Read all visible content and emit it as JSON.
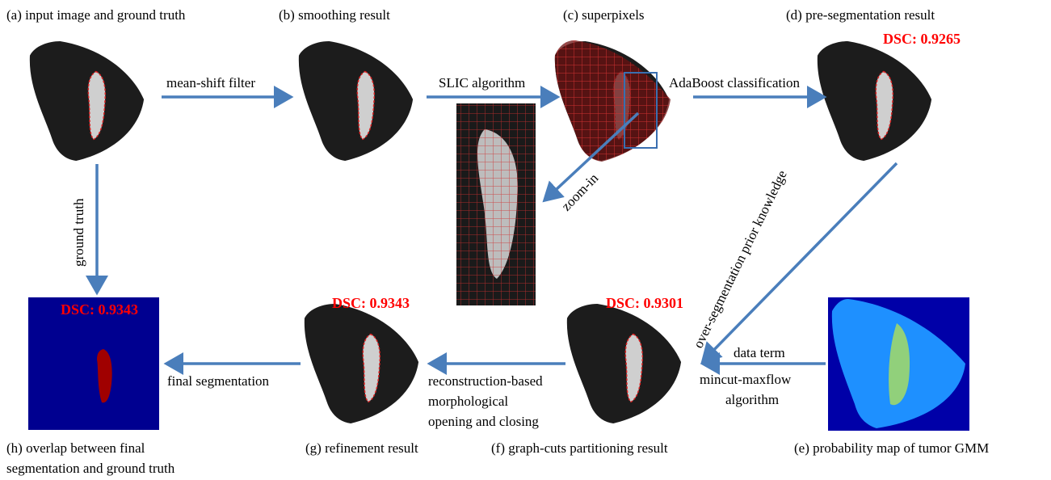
{
  "nodes": [
    {
      "caption": "(a) input image and ground truth"
    },
    {
      "caption": "(b) smoothing result"
    },
    {
      "caption": "(c) superpixels"
    },
    {
      "caption": "(d) pre-segmentation result",
      "score": "DSC: 0.9265"
    },
    {
      "caption": "(e) probability map of tumor GMM"
    },
    {
      "caption": "(f) graph-cuts partitioning result",
      "score": "DSC: 0.9301"
    },
    {
      "caption": "(g) refinement result",
      "score": "DSC: 0.9343"
    },
    {
      "caption_lines": [
        "(h) overlap between final",
        "segmentation and ground truth"
      ],
      "score": "DSC: 0.9343"
    }
  ],
  "edges": [
    {
      "label": "mean-shift filter"
    },
    {
      "label": "SLIC algorithm"
    },
    {
      "label": "AdaBoost classification"
    },
    {
      "label": "zoom-in"
    },
    {
      "label": "over-segmentation prior knowledge"
    },
    {
      "label": "data term"
    },
    {
      "label_lines": [
        "mincut-maxflow",
        "algorithm"
      ]
    },
    {
      "label_lines": [
        "reconstruction-based",
        "morphological",
        "opening and closing"
      ]
    },
    {
      "label": "final segmentation"
    },
    {
      "label": "ground truth"
    }
  ]
}
